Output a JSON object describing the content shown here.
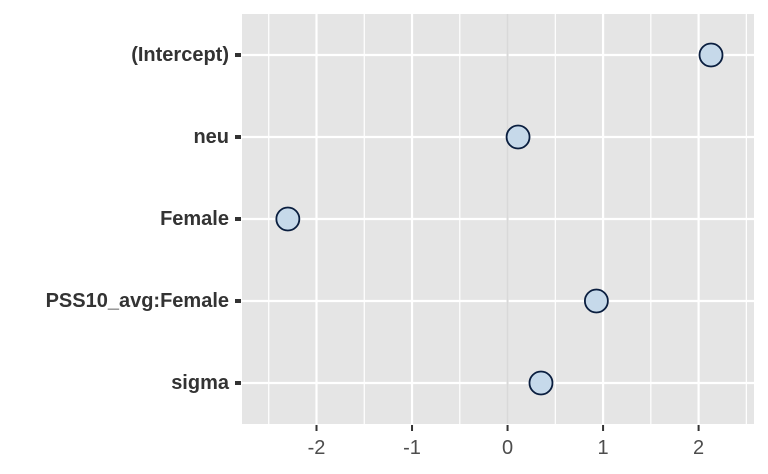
{
  "chart_data": {
    "type": "scatter",
    "title": "",
    "xlabel": "",
    "ylabel": "",
    "categories": [
      "(Intercept)",
      "neu",
      "Female",
      "PSS10_avg:Female",
      "sigma"
    ],
    "values": [
      2.13,
      0.11,
      -2.3,
      0.93,
      0.35
    ],
    "xlim": [
      -2.78,
      2.58
    ],
    "x_ticks": [
      -2,
      -1,
      0,
      1,
      2
    ],
    "x_tick_labels": [
      "-2",
      "-1",
      "0",
      "1",
      "2"
    ],
    "grid": true,
    "vline_at": 0,
    "colors": {
      "panel_bg": "#e5e5e5",
      "grid_major": "#ffffff",
      "point_fill": "#c6d9ea",
      "point_stroke": "#0a1e3f",
      "zero_line": "#d9d9d9",
      "tick_mark": "#333333"
    }
  }
}
